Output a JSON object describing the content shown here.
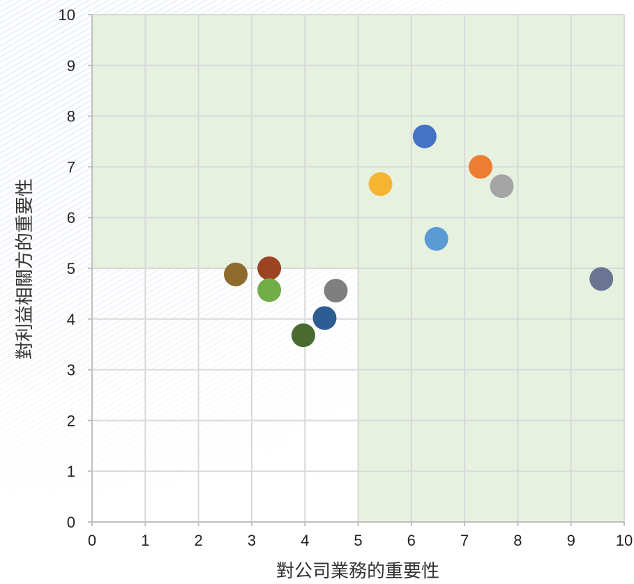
{
  "chart_data": {
    "type": "scatter",
    "title": "",
    "xlabel": "對公司業務的重要性",
    "ylabel": "對利益相關方的重要性",
    "xlim": [
      0,
      10
    ],
    "ylim": [
      0,
      10
    ],
    "xticks": [
      "0",
      "1",
      "2",
      "3",
      "4",
      "5",
      "6",
      "7",
      "8",
      "9",
      "10"
    ],
    "yticks": [
      "0",
      "1",
      "2",
      "3",
      "4",
      "5",
      "6",
      "7",
      "8",
      "9",
      "10"
    ],
    "grid": true,
    "legend": "none",
    "highlight_regions": [
      {
        "x": [
          0,
          10
        ],
        "y": [
          5,
          10
        ],
        "color": "#e6f1e0"
      },
      {
        "x": [
          5,
          10
        ],
        "y": [
          0,
          5
        ],
        "color": "#e6f1e0"
      }
    ],
    "points": [
      {
        "x": 6.25,
        "y": 7.6,
        "color": "#4472c4"
      },
      {
        "x": 7.3,
        "y": 7.0,
        "color": "#ed7d31"
      },
      {
        "x": 7.7,
        "y": 6.62,
        "color": "#a5a5a5"
      },
      {
        "x": 5.42,
        "y": 6.66,
        "color": "#f5b533"
      },
      {
        "x": 6.47,
        "y": 5.58,
        "color": "#5b9bd5"
      },
      {
        "x": 9.57,
        "y": 4.79,
        "color": "#6b7592"
      },
      {
        "x": 2.7,
        "y": 4.88,
        "color": "#8e6b2c"
      },
      {
        "x": 3.33,
        "y": 5.0,
        "color": "#9b4323"
      },
      {
        "x": 3.33,
        "y": 4.57,
        "color": "#70ad47"
      },
      {
        "x": 4.58,
        "y": 4.56,
        "color": "#7f7f7f"
      },
      {
        "x": 4.37,
        "y": 4.02,
        "color": "#2e5d93"
      },
      {
        "x": 3.97,
        "y": 3.68,
        "color": "#4a6b30"
      }
    ]
  }
}
